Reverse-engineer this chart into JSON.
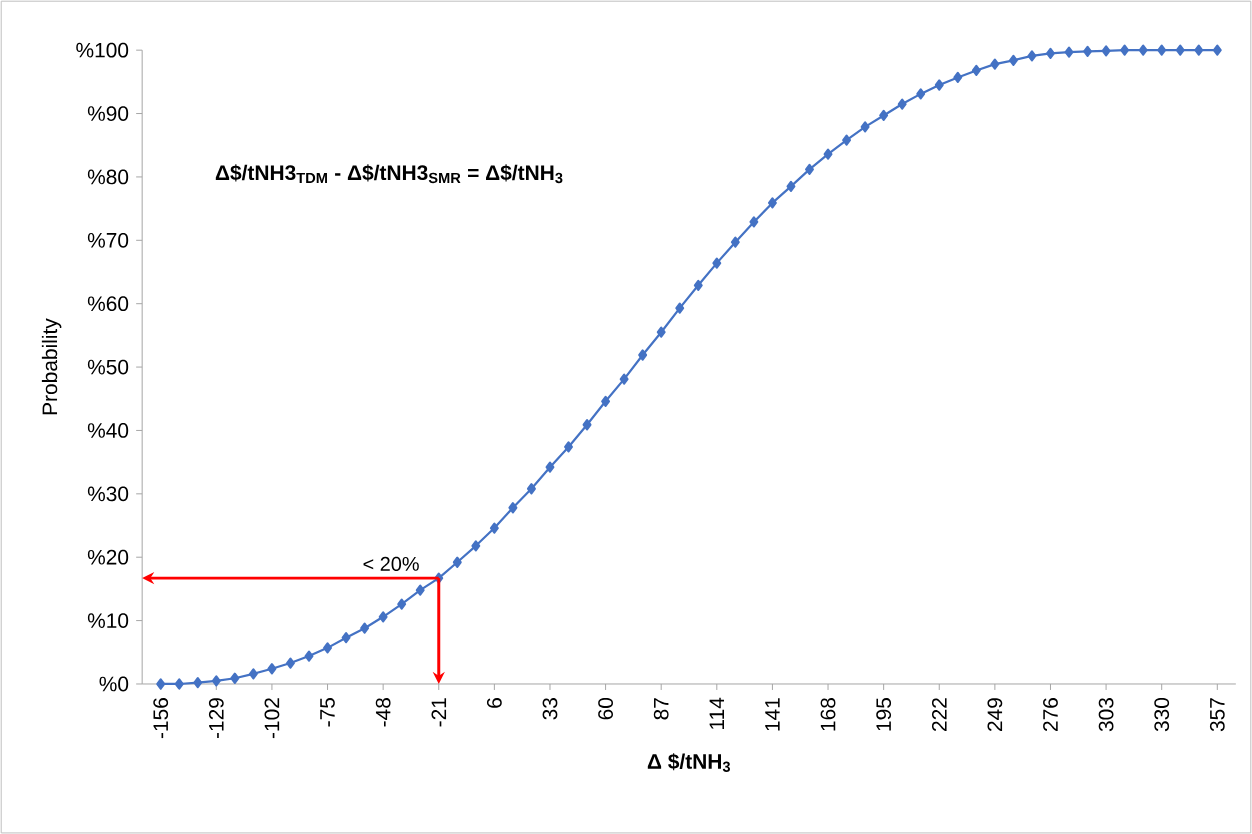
{
  "chart_data": {
    "type": "line",
    "xlabel": "Δ $/tNH$_{3}$",
    "ylabel": "Probability",
    "x": [
      -156,
      -147,
      -138,
      -129,
      -120,
      -111,
      -102,
      -93,
      -84,
      -75,
      -66,
      -57,
      -48,
      -39,
      -30,
      -21,
      -12,
      -3,
      6,
      15,
      24,
      33,
      42,
      51,
      60,
      69,
      78,
      87,
      96,
      105,
      114,
      123,
      132,
      141,
      150,
      159,
      168,
      177,
      186,
      195,
      204,
      213,
      222,
      231,
      240,
      249,
      258,
      267,
      276,
      285,
      294,
      303,
      312,
      321,
      330,
      339,
      348,
      357
    ],
    "series": [
      {
        "color": "#4472c4",
        "values": [
          0,
          0,
          0.2,
          0.5,
          0.9,
          1.6,
          2.4,
          3.3,
          4.4,
          5.7,
          7.3,
          8.8,
          10.6,
          12.6,
          14.8,
          16.7,
          19.2,
          21.8,
          24.6,
          27.8,
          30.8,
          34.2,
          37.4,
          40.9,
          44.6,
          48.1,
          51.9,
          55.5,
          59.3,
          62.9,
          66.4,
          69.7,
          72.9,
          75.9,
          78.5,
          81.2,
          83.6,
          85.8,
          87.9,
          89.7,
          91.5,
          93.1,
          94.5,
          95.7,
          96.8,
          97.8,
          98.4,
          99.1,
          99.5,
          99.7,
          99.8,
          99.9,
          100,
          100,
          100,
          100,
          100,
          100
        ]
      }
    ],
    "xlim": [
      -165,
      366
    ],
    "xticks": [
      -156,
      -129,
      -102,
      -75,
      -48,
      -21,
      6,
      33,
      60,
      87,
      114,
      141,
      168,
      195,
      222,
      249,
      276,
      303,
      330,
      357
    ],
    "ylim": [
      0,
      100
    ],
    "yticks": [
      {
        "value": 0,
        "label": "%0"
      },
      {
        "value": 10,
        "label": "%10"
      },
      {
        "value": 20,
        "label": "%20"
      },
      {
        "value": 30,
        "label": "%30"
      },
      {
        "value": 40,
        "label": "%40"
      },
      {
        "value": 50,
        "label": "%50"
      },
      {
        "value": 60,
        "label": "%60"
      },
      {
        "value": 70,
        "label": "%70"
      },
      {
        "value": 80,
        "label": "%80"
      },
      {
        "value": 90,
        "label": "%90"
      },
      {
        "value": 100,
        "label": "%100"
      }
    ],
    "annotations": [
      "Δ$/tNH3$_{TDM}$ - Δ$/tNH3$_{SMR}$ = Δ$/tNH$_{3}$",
      {
        "text": "< 20%",
        "x": -21,
        "y": 16.7
      }
    ],
    "marker": "diamond",
    "line_style": "solid",
    "grid": false
  }
}
